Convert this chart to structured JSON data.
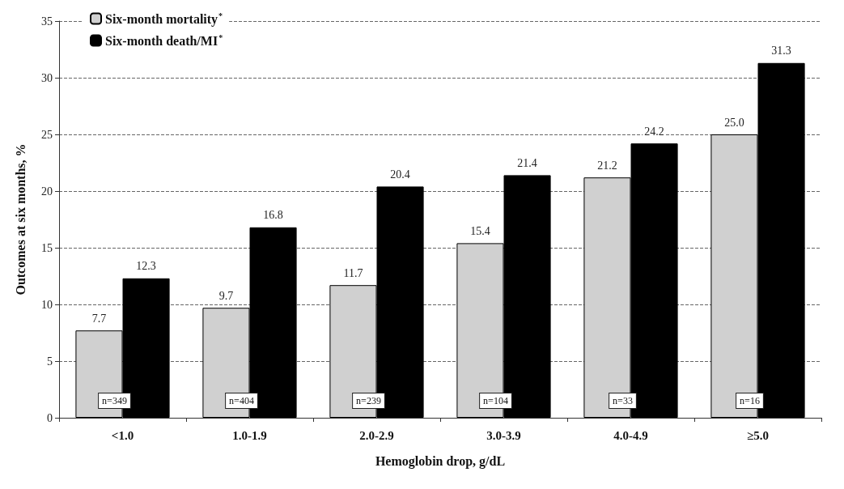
{
  "chart_data": {
    "type": "bar",
    "xlabel": "Hemoglobin drop, g/dL",
    "ylabel": "Outcomes at six months, %",
    "categories": [
      "<1.0",
      "1.0-1.9",
      "2.0-2.9",
      "3.0-3.9",
      "4.0-4.9",
      "≥5.0"
    ],
    "series": [
      {
        "name": "Six-month mortality$^{*}$",
        "color": "#d0d0d0",
        "values": [
          7.7,
          9.7,
          11.7,
          15.4,
          21.2,
          25.0
        ],
        "value_labels": [
          "7.7",
          "9.7",
          "11.7",
          "15.4",
          "21.2",
          "25.0"
        ]
      },
      {
        "name": "Six-month death/MI$^{*}$",
        "color": "#000000",
        "values": [
          12.3,
          16.8,
          20.4,
          21.4,
          24.2,
          31.3
        ],
        "value_labels": [
          "12.3",
          "16.8",
          "20.4",
          "21.4",
          "24.2",
          "31.3"
        ]
      }
    ],
    "ylim": [
      0,
      35
    ],
    "yticks": [
      0,
      5,
      10,
      15,
      20,
      25,
      30,
      35
    ],
    "grid": "y",
    "legend": "top left",
    "annotations": [
      {
        "text": "n=349",
        "x": "<1.0",
        "y": 1.5
      },
      {
        "text": "n=404",
        "x": "1.0-1.9",
        "y": 1.5
      },
      {
        "text": "n=239",
        "x": "2.0-2.9",
        "y": 1.5
      },
      {
        "text": "n=104",
        "x": "3.0-3.9",
        "y": 1.5
      },
      {
        "text": "n=33",
        "x": "4.0-4.9",
        "y": 1.5
      },
      {
        "text": "n=16",
        "x": "≥5.0",
        "y": 1.5
      }
    ]
  }
}
